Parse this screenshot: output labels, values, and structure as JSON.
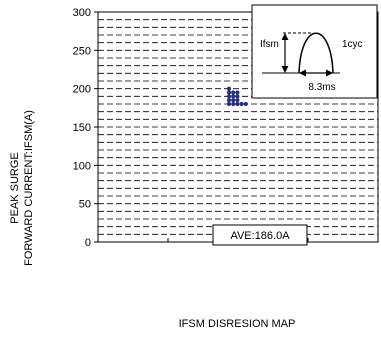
{
  "chart_data": {
    "type": "scatter",
    "title": "IFSM DISRESION MAP",
    "ylabel_line1": "PEAK SURGE",
    "ylabel_line2": "FORWARD CURRENT:IFSM(A)",
    "ylim": [
      0,
      300
    ],
    "yticks": [
      0,
      50,
      100,
      150,
      200,
      250,
      300
    ],
    "grid": "dashed horizontal lines every 10 A, vertical divisions unlabeled",
    "annotation": "AVE:186.0A",
    "points": [
      {
        "x": 0,
        "y": 200
      },
      {
        "x": 0,
        "y": 195
      },
      {
        "x": 1,
        "y": 195
      },
      {
        "x": 2,
        "y": 195
      },
      {
        "x": 0,
        "y": 190
      },
      {
        "x": 1,
        "y": 190
      },
      {
        "x": 2,
        "y": 190
      },
      {
        "x": 0,
        "y": 185
      },
      {
        "x": 1,
        "y": 185
      },
      {
        "x": 2,
        "y": 185
      },
      {
        "x": 0,
        "y": 180
      },
      {
        "x": 1,
        "y": 180
      },
      {
        "x": 2,
        "y": 180
      },
      {
        "x": 3,
        "y": 180
      },
      {
        "x": 4,
        "y": 180
      }
    ],
    "inset": {
      "ifsm_label": "Ifsm",
      "cycle_label": "1cyc",
      "time_label": "8.3ms"
    },
    "point_color": "#2a2f7a"
  }
}
